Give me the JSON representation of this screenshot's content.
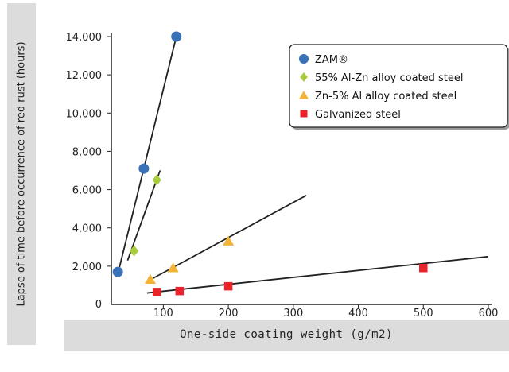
{
  "chart_data": {
    "type": "scatter",
    "xlabel": "One-side coating weight (g/m2)",
    "ylabel": "Lapse of time before occurrence of red rust (hours)",
    "xlim": [
      0,
      600
    ],
    "ylim": [
      0,
      14000
    ],
    "x_ticks": [
      "100",
      "200",
      "300",
      "400",
      "500",
      "600"
    ],
    "y_ticks": [
      "0",
      "2,000",
      "4,000",
      "6,000",
      "8,000",
      "10,000",
      "12,000",
      "14,000"
    ],
    "legend_position": "top-right",
    "series": [
      {
        "name": "ZAM®",
        "marker": "circle",
        "color": "#3a72b8",
        "points": [
          [
            30,
            1700
          ],
          [
            70,
            7100
          ],
          [
            120,
            14000
          ]
        ],
        "trend": [
          [
            30,
            1600
          ],
          [
            120,
            14000
          ]
        ]
      },
      {
        "name": "55% Al-Zn alloy coated steel",
        "marker": "diamond",
        "color": "#a8cc3a",
        "points": [
          [
            55,
            2800
          ],
          [
            90,
            6500
          ]
        ],
        "trend": [
          [
            45,
            2300
          ],
          [
            95,
            7000
          ]
        ]
      },
      {
        "name": "Zn-5% Al alloy coated steel",
        "marker": "triangle",
        "color": "#f2b33a",
        "points": [
          [
            80,
            1300
          ],
          [
            115,
            1900
          ],
          [
            200,
            3300
          ]
        ],
        "trend": [
          [
            75,
            1200
          ],
          [
            320,
            5700
          ]
        ]
      },
      {
        "name": "Galvanized steel",
        "marker": "square",
        "color": "#e8232a",
        "points": [
          [
            90,
            650
          ],
          [
            125,
            700
          ],
          [
            200,
            950
          ],
          [
            500,
            1900
          ]
        ],
        "trend": [
          [
            75,
            600
          ],
          [
            600,
            2500
          ]
        ]
      }
    ]
  }
}
